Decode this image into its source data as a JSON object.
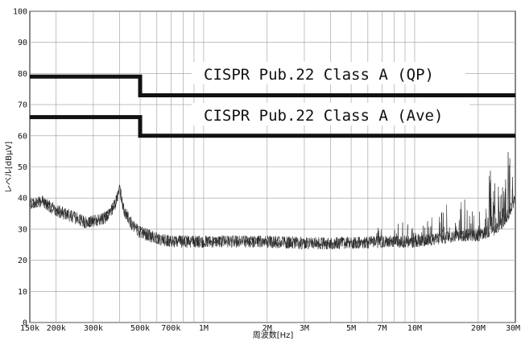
{
  "chart_data": {
    "type": "line",
    "xlabel": "周波数[Hz]",
    "ylabel": "レベル[dBμV]",
    "x_scale": "log",
    "xlim": [
      150000,
      30000000
    ],
    "ylim": [
      0,
      100
    ],
    "grid": true,
    "x_ticks": [
      {
        "value": 150000,
        "label": "150k"
      },
      {
        "value": 200000,
        "label": "200k"
      },
      {
        "value": 300000,
        "label": "300k"
      },
      {
        "value": 500000,
        "label": "500k"
      },
      {
        "value": 700000,
        "label": "700k"
      },
      {
        "value": 1000000,
        "label": "1M"
      },
      {
        "value": 2000000,
        "label": "2M"
      },
      {
        "value": 3000000,
        "label": "3M"
      },
      {
        "value": 5000000,
        "label": "5M"
      },
      {
        "value": 7000000,
        "label": "7M"
      },
      {
        "value": 10000000,
        "label": "10M"
      },
      {
        "value": 20000000,
        "label": "20M"
      },
      {
        "value": 30000000,
        "label": "30M"
      }
    ],
    "y_ticks": [
      0,
      10,
      20,
      30,
      40,
      50,
      60,
      70,
      80,
      90,
      100
    ],
    "limit_lines": [
      {
        "name": "CISPR Pub.22 Class A (QP)",
        "x": [
          150000,
          500000,
          500000,
          30000000
        ],
        "y": [
          79,
          79,
          73,
          73
        ]
      },
      {
        "name": "CISPR Pub.22 Class A (Ave)",
        "x": [
          150000,
          500000,
          500000,
          30000000
        ],
        "y": [
          66,
          66,
          60,
          60
        ]
      }
    ],
    "series": [
      {
        "x": [
          150000,
          170000,
          200000,
          240000,
          280000,
          320000,
          350000,
          380000,
          400000,
          420000,
          460000,
          500000,
          550000,
          600000,
          700000,
          800000,
          1000000,
          1500000,
          2000000,
          3000000,
          4000000,
          5000000,
          7000000,
          10000000,
          13000000,
          16000000,
          20000000,
          24000000,
          27000000,
          30000000
        ],
        "y": [
          38,
          39,
          36,
          34,
          32,
          33,
          34,
          38,
          43,
          36,
          31,
          29,
          28,
          27,
          26,
          26,
          26,
          26,
          26,
          25.5,
          25.5,
          25.5,
          26,
          26,
          27,
          28,
          28,
          30,
          33,
          40
        ]
      }
    ]
  }
}
